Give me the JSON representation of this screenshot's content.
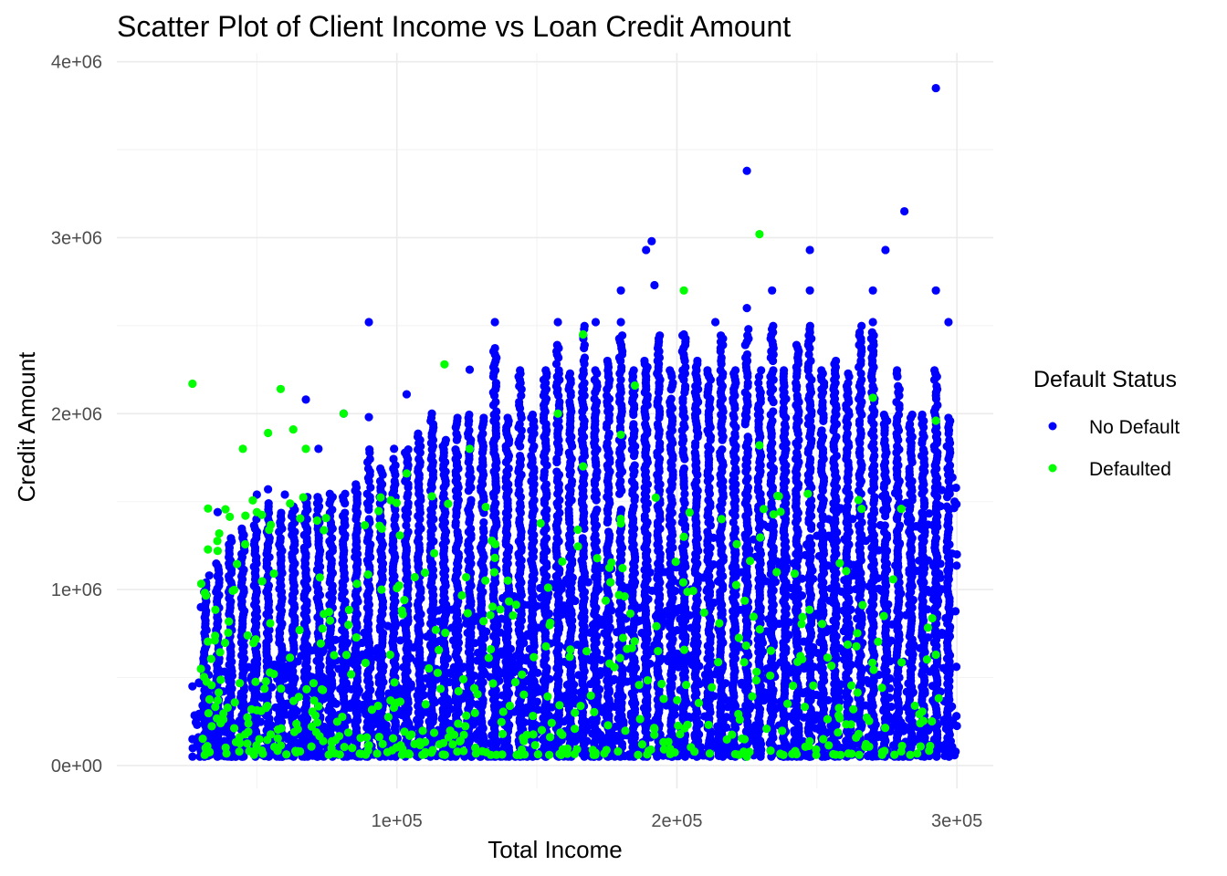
{
  "chart_data": {
    "type": "scatter",
    "title": "Scatter Plot of Client Income vs Loan Credit Amount",
    "xlabel": "Total Income",
    "ylabel": "Credit Amount",
    "xlim": [
      0,
      313000
    ],
    "ylim": [
      -130000,
      4050000
    ],
    "x_ticks": [
      100000,
      200000,
      300000
    ],
    "x_tick_labels": [
      "1e+05",
      "2e+05",
      "3e+05"
    ],
    "y_ticks": [
      0,
      1000000,
      2000000,
      3000000,
      4000000
    ],
    "y_tick_labels": [
      "0e+00",
      "1e+06",
      "2e+06",
      "3e+06",
      "4e+06"
    ],
    "grid": true,
    "legend_position": "right",
    "legend_title": "Default Status",
    "series": [
      {
        "name": "No Default",
        "color": "#0000ff",
        "points": [
          [
            27000,
            150000
          ],
          [
            27000,
            450000
          ],
          [
            30000,
            900000
          ],
          [
            33000,
            1080000
          ],
          [
            36000,
            1440000
          ],
          [
            45000,
            1300000
          ],
          [
            50000,
            1540000
          ],
          [
            54000,
            1570000
          ],
          [
            60000,
            1540000
          ],
          [
            67500,
            2080000
          ],
          [
            72000,
            1800000
          ],
          [
            81000,
            2000000
          ],
          [
            90000,
            2520000
          ],
          [
            90000,
            1980000
          ],
          [
            99000,
            1800000
          ],
          [
            103500,
            2110000
          ],
          [
            112500,
            2000000
          ],
          [
            126000,
            2250000
          ],
          [
            135000,
            2520000
          ],
          [
            157500,
            2520000
          ],
          [
            171000,
            2520000
          ],
          [
            180000,
            2700000
          ],
          [
            180000,
            2520000
          ],
          [
            189000,
            2930000
          ],
          [
            191000,
            2980000
          ],
          [
            192000,
            2730000
          ],
          [
            202500,
            2450000
          ],
          [
            213750,
            2520000
          ],
          [
            225000,
            3380000
          ],
          [
            225000,
            2600000
          ],
          [
            234000,
            2700000
          ],
          [
            247500,
            2930000
          ],
          [
            247500,
            2700000
          ],
          [
            270000,
            2700000
          ],
          [
            270000,
            2520000
          ],
          [
            274500,
            2930000
          ],
          [
            281250,
            3150000
          ],
          [
            292500,
            3850000
          ],
          [
            292500,
            2700000
          ],
          [
            297000,
            2520000
          ],
          [
            300000,
            1200000
          ],
          [
            300000,
            225000
          ]
        ],
        "columns": [
          [
            31500,
            50000,
            1050000
          ],
          [
            36000,
            50000,
            1150000
          ],
          [
            40500,
            50000,
            1300000
          ],
          [
            45000,
            50000,
            1350000
          ],
          [
            49500,
            50000,
            1400000
          ],
          [
            54000,
            50000,
            1500000
          ],
          [
            58500,
            50000,
            1450000
          ],
          [
            63000,
            50000,
            1500000
          ],
          [
            67500,
            50000,
            1550000
          ],
          [
            72000,
            50000,
            1530000
          ],
          [
            76500,
            50000,
            1550000
          ],
          [
            81000,
            50000,
            1550000
          ],
          [
            85500,
            50000,
            1600000
          ],
          [
            90000,
            50000,
            1800000
          ],
          [
            94500,
            50000,
            1700000
          ],
          [
            99000,
            50000,
            1750000
          ],
          [
            103500,
            50000,
            1800000
          ],
          [
            108000,
            50000,
            1900000
          ],
          [
            112500,
            50000,
            2000000
          ],
          [
            117000,
            50000,
            1850000
          ],
          [
            121500,
            50000,
            2000000
          ],
          [
            126000,
            50000,
            2000000
          ],
          [
            130500,
            50000,
            2000000
          ],
          [
            135000,
            50000,
            2400000
          ],
          [
            139500,
            50000,
            2000000
          ],
          [
            144000,
            50000,
            2250000
          ],
          [
            148500,
            50000,
            2000000
          ],
          [
            153000,
            50000,
            2250000
          ],
          [
            157500,
            50000,
            2400000
          ],
          [
            162000,
            50000,
            2250000
          ],
          [
            166500,
            50000,
            2500000
          ],
          [
            171000,
            50000,
            2250000
          ],
          [
            175500,
            50000,
            2300000
          ],
          [
            180000,
            50000,
            2450000
          ],
          [
            184500,
            50000,
            2250000
          ],
          [
            189000,
            50000,
            2300000
          ],
          [
            193500,
            50000,
            2450000
          ],
          [
            198000,
            50000,
            2250000
          ],
          [
            202500,
            50000,
            2450000
          ],
          [
            207000,
            50000,
            2300000
          ],
          [
            211500,
            50000,
            2250000
          ],
          [
            216000,
            50000,
            2450000
          ],
          [
            220500,
            50000,
            2250000
          ],
          [
            225000,
            50000,
            2500000
          ],
          [
            229500,
            50000,
            2250000
          ],
          [
            234000,
            50000,
            2500000
          ],
          [
            238500,
            50000,
            2250000
          ],
          [
            243000,
            50000,
            2400000
          ],
          [
            247500,
            50000,
            2500000
          ],
          [
            252000,
            50000,
            2250000
          ],
          [
            256500,
            50000,
            2300000
          ],
          [
            261000,
            50000,
            2250000
          ],
          [
            265500,
            50000,
            2500000
          ],
          [
            270000,
            50000,
            2500000
          ],
          [
            274500,
            50000,
            2000000
          ],
          [
            279000,
            50000,
            2250000
          ],
          [
            283500,
            50000,
            2000000
          ],
          [
            288000,
            50000,
            2000000
          ],
          [
            292500,
            50000,
            2250000
          ],
          [
            297000,
            50000,
            2000000
          ]
        ]
      },
      {
        "name": "Defaulted",
        "color": "#00ff00",
        "points": [
          [
            27000,
            2170000
          ],
          [
            36000,
            1220000
          ],
          [
            45000,
            1800000
          ],
          [
            50000,
            1440000
          ],
          [
            54000,
            1890000
          ],
          [
            58500,
            2140000
          ],
          [
            63000,
            1910000
          ],
          [
            67500,
            1800000
          ],
          [
            81000,
            2000000
          ],
          [
            103500,
            1660000
          ],
          [
            112500,
            1530000
          ],
          [
            117000,
            2280000
          ],
          [
            126000,
            1800000
          ],
          [
            166500,
            2450000
          ],
          [
            185000,
            2160000
          ],
          [
            202500,
            2700000
          ],
          [
            229500,
            3020000
          ],
          [
            229500,
            1820000
          ],
          [
            270000,
            2090000
          ],
          [
            292500,
            1960000
          ],
          [
            292500,
            630000
          ],
          [
            225000,
            50000
          ],
          [
            202500,
            1300000
          ],
          [
            157500,
            2000000
          ],
          [
            166500,
            1700000
          ],
          [
            135000,
            1180000
          ],
          [
            180000,
            1880000
          ],
          [
            94500,
            1000000
          ]
        ]
      }
    ]
  }
}
